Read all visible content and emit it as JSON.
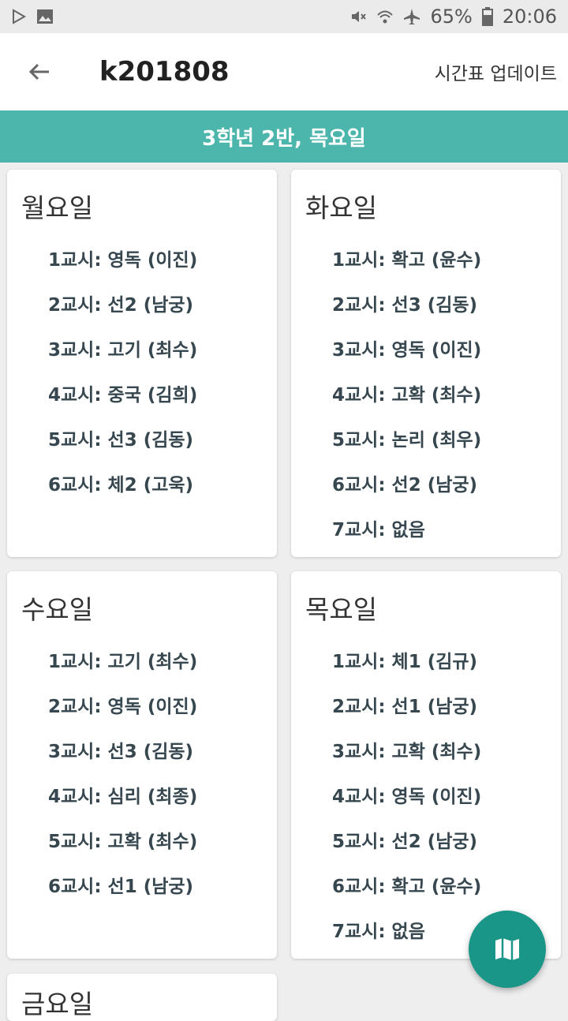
{
  "status_bar": {
    "battery": "65%",
    "time": "20:06"
  },
  "app_bar": {
    "title": "k201808",
    "update_label": "시간표 업데이트"
  },
  "subheader": "3학년 2반, 목요일",
  "days": [
    {
      "name": "월요일",
      "periods": [
        "1교시: 영독 (이진)",
        "2교시: 선2 (남궁)",
        "3교시: 고기 (최수)",
        "4교시: 중국 (김희)",
        "5교시: 선3 (김동)",
        "6교시: 체2 (고욱)"
      ]
    },
    {
      "name": "화요일",
      "periods": [
        "1교시: 확고 (윤수)",
        "2교시: 선3 (김동)",
        "3교시: 영독 (이진)",
        "4교시: 고확 (최수)",
        "5교시: 논리 (최우)",
        "6교시: 선2 (남궁)",
        "7교시: 없음"
      ]
    },
    {
      "name": "수요일",
      "periods": [
        "1교시: 고기 (최수)",
        "2교시: 영독 (이진)",
        "3교시: 선3 (김동)",
        "4교시: 심리 (최종)",
        "5교시: 고확 (최수)",
        "6교시: 선1 (남궁)"
      ]
    },
    {
      "name": "목요일",
      "periods": [
        "1교시: 체1 (김규)",
        "2교시: 선1 (남궁)",
        "3교시: 고확 (최수)",
        "4교시: 영독 (이진)",
        "5교시: 선2 (남궁)",
        "6교시: 확고 (윤수)",
        "7교시: 없음"
      ]
    },
    {
      "name": "금요일",
      "periods": []
    }
  ],
  "fab_icon": "map-icon",
  "colors": {
    "accent": "#4db6ac",
    "fab": "#1a9688"
  }
}
